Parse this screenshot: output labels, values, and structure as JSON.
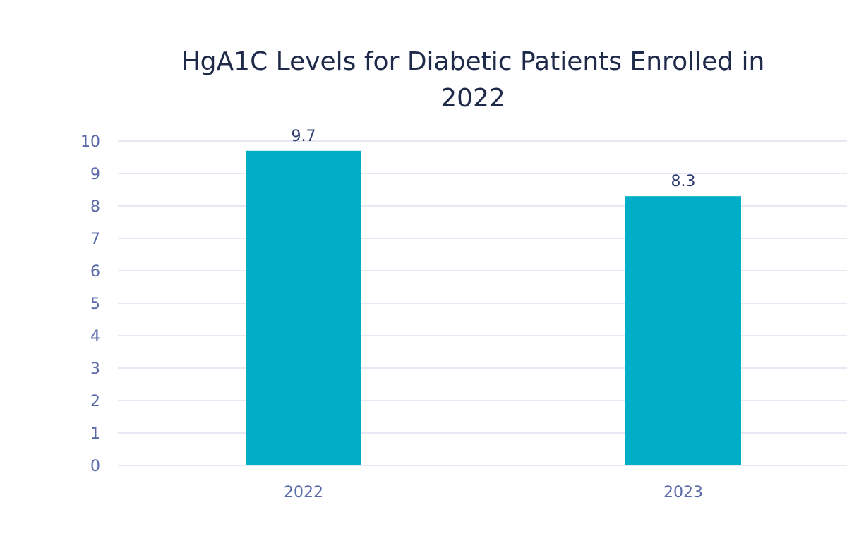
{
  "colors": {
    "bar": "#00AEC7",
    "gridline": "#d6d9ee",
    "axis_text": "#5a6aa8",
    "data_label": "#2c3a6e",
    "title": "#1f2a4a"
  },
  "chart_data": {
    "type": "bar",
    "title_line1": "HgA1C Levels for Diabetic Patients Enrolled in",
    "title_line2": "2022",
    "xlabel": "",
    "ylabel": "",
    "categories": [
      "2022",
      "2023"
    ],
    "values": [
      9.7,
      8.3
    ],
    "data_labels": [
      "9.7",
      "8.3"
    ],
    "ylim": [
      0,
      10
    ],
    "yticks": [
      "0",
      "1",
      "2",
      "3",
      "4",
      "5",
      "6",
      "7",
      "8",
      "9",
      "10"
    ],
    "grid": true,
    "legend": "none"
  }
}
